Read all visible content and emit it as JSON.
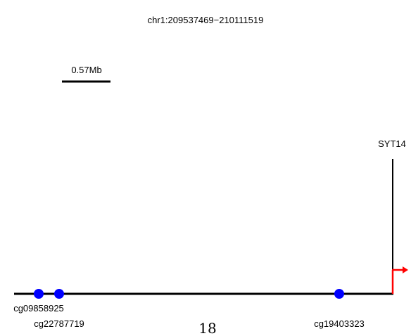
{
  "region": "chr1:209537469−210111519",
  "scale_bar_label": "0.57Mb",
  "page_number": "18",
  "colors": {
    "probe": "#0000ff",
    "tss_arrow": "#ff0000",
    "line": "#000000"
  },
  "gene": {
    "name": "SYT14"
  },
  "probes": [
    {
      "name": "cg09858925"
    },
    {
      "name": "cg22787719"
    },
    {
      "name": "cg19403323"
    }
  ]
}
